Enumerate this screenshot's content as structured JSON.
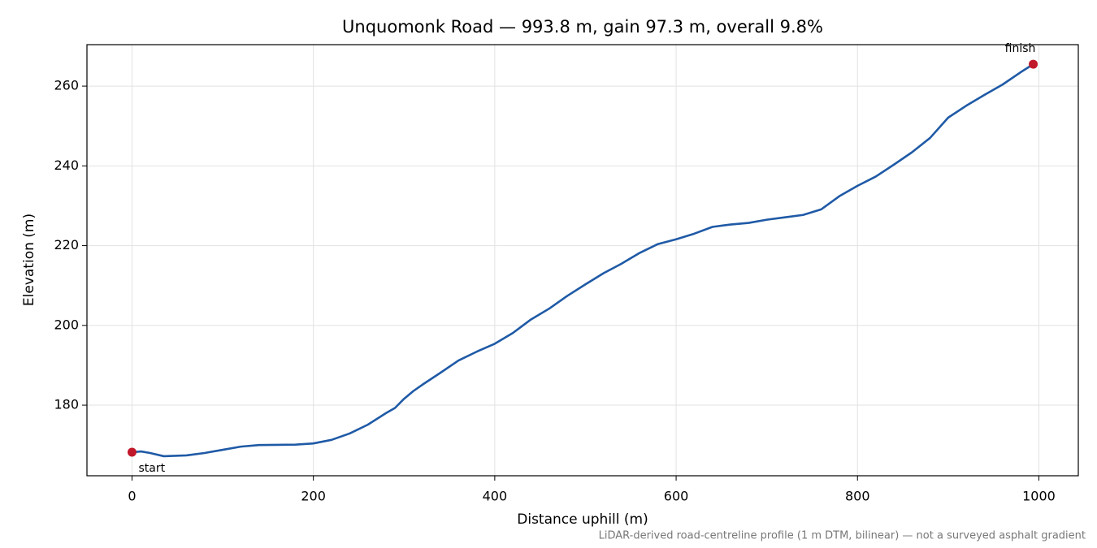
{
  "chart_data": {
    "type": "line",
    "title": "Unquomonk Road — 993.8 m, gain 97.3 m, overall 9.8%",
    "x_label": "Distance uphill (m)",
    "y_label": "Elevation (m)",
    "footnote": "LiDAR-derived road-centreline profile (1 m DTM, bilinear) — not a surveyed asphalt gradient",
    "x": [
      0,
      10,
      20,
      35,
      60,
      80,
      100,
      120,
      140,
      180,
      200,
      220,
      240,
      260,
      280,
      290,
      300,
      310,
      320,
      340,
      360,
      380,
      400,
      420,
      440,
      460,
      480,
      500,
      520,
      540,
      560,
      580,
      600,
      620,
      640,
      660,
      680,
      700,
      720,
      740,
      760,
      780,
      800,
      820,
      840,
      860,
      880,
      900,
      920,
      940,
      960,
      980,
      993.8
    ],
    "series": [
      {
        "name": "Elevation",
        "color": "#1f5aa6",
        "values": [
          168.2,
          168.4,
          168.0,
          167.2,
          167.4,
          168.0,
          168.8,
          169.6,
          170.0,
          170.1,
          170.4,
          171.3,
          172.9,
          175.1,
          178.0,
          179.3,
          181.6,
          183.5,
          185.1,
          188.1,
          191.2,
          193.4,
          195.4,
          198.1,
          201.5,
          204.2,
          207.4,
          210.3,
          213.1,
          215.5,
          218.2,
          220.4,
          221.6,
          223.0,
          224.7,
          225.3,
          225.7,
          226.5,
          227.1,
          227.7,
          229.1,
          232.4,
          235.0,
          237.3,
          240.3,
          243.4,
          247.0,
          252.1,
          255.1,
          257.8,
          260.4,
          263.5,
          265.5
        ]
      }
    ],
    "points": [
      {
        "label": "start",
        "x": 0,
        "y": 168.2,
        "color": "#c0182a"
      },
      {
        "label": "finish",
        "x": 993.8,
        "y": 265.5,
        "color": "#c0182a"
      }
    ],
    "xlim": [
      -49.69,
      1043.49
    ],
    "ylim": [
      162.3,
      270.4
    ],
    "xticks": [
      0,
      200,
      400,
      600,
      800,
      1000
    ],
    "yticks": [
      180,
      200,
      220,
      240,
      260
    ],
    "grid": true
  }
}
